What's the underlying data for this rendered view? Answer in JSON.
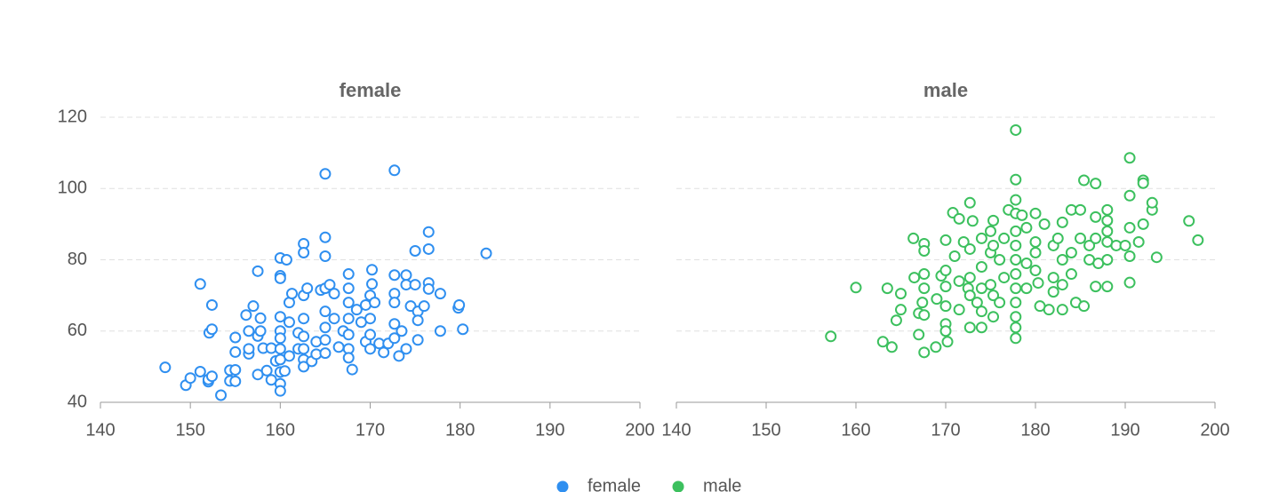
{
  "chart_data": [
    {
      "type": "scatter",
      "title": "female",
      "show_y_labels": true,
      "xlim": [
        140,
        200
      ],
      "ylim": [
        40,
        120
      ],
      "xticks": [
        140,
        150,
        160,
        170,
        180,
        190,
        200
      ],
      "yticks": [
        40,
        60,
        80,
        100,
        120
      ],
      "grid": true,
      "series": [
        {
          "name": "female",
          "color": "#2f8ff0",
          "x": [
            147.2,
            149.5,
            150,
            151.1,
            151.1,
            152,
            152,
            152.4,
            152.1,
            152.4,
            152.4,
            153.4,
            154.4,
            154.4,
            155,
            155,
            155,
            155,
            156.2,
            156.5,
            156.5,
            156.5,
            157,
            157.5,
            157.5,
            157.5,
            157.8,
            157.8,
            158.1,
            158.5,
            159,
            159,
            159.5,
            160,
            160,
            160,
            160,
            160,
            160,
            160,
            160,
            160,
            160,
            160,
            160.5,
            160.7,
            161,
            161,
            161,
            161.3,
            162,
            162,
            162.6,
            162.6,
            162.6,
            162.6,
            162.6,
            162.6,
            162.6,
            162.6,
            163,
            163.5,
            164,
            164,
            164.5,
            165,
            165,
            165,
            165,
            165,
            165,
            165,
            165,
            165.5,
            166,
            166,
            166.5,
            167,
            167.6,
            167.6,
            167.6,
            167.6,
            167.6,
            167.6,
            167.6,
            168,
            168.5,
            169,
            169.5,
            169.5,
            170,
            170,
            170,
            170,
            170.2,
            170.2,
            170.5,
            171,
            171.5,
            172,
            172.7,
            172.7,
            172.7,
            172.7,
            172.7,
            172.7,
            173.2,
            173.5,
            174,
            174,
            174,
            174.5,
            175,
            175,
            175.3,
            175.3,
            175.3,
            176,
            176.5,
            176.5,
            176.5,
            176.5,
            177.8,
            177.8,
            179.8,
            179.9,
            180.3,
            182.9
          ],
          "y": [
            49.8,
            44.8,
            46.8,
            48.6,
            73.2,
            45.8,
            46.4,
            47.3,
            59.5,
            60.5,
            67.3,
            42.0,
            49.0,
            46.0,
            58.2,
            49.1,
            45.9,
            54.1,
            64.5,
            53.6,
            55.0,
            60.0,
            67.0,
            47.8,
            76.8,
            58.6,
            60.0,
            63.6,
            55.2,
            48.9,
            55.2,
            46.3,
            51.6,
            80.5,
            75.5,
            74.8,
            64.0,
            60.0,
            58.0,
            55.0,
            52.0,
            48.5,
            45.2,
            43.2,
            48.8,
            80.0,
            68.0,
            62.5,
            53.0,
            70.5,
            55.0,
            59.5,
            84.5,
            82.0,
            70.0,
            63.5,
            58.5,
            55.0,
            52.0,
            50.0,
            72.0,
            51.5,
            57.0,
            53.5,
            71.5,
            104.1,
            86.3,
            81.0,
            72.0,
            65.5,
            61.0,
            57.5,
            53.8,
            73.0,
            63.5,
            70.5,
            55.5,
            60.0,
            76.0,
            72.0,
            68.0,
            63.5,
            59.0,
            55.0,
            52.5,
            49.2,
            66.0,
            62.5,
            57.0,
            67.3,
            70.0,
            63.5,
            59.0,
            55.0,
            77.2,
            73.2,
            68.0,
            56.5,
            54.0,
            56.5,
            105.1,
            75.7,
            70.5,
            68.0,
            62.0,
            58.0,
            53.0,
            60.0,
            75.7,
            73.0,
            55.0,
            67.0,
            82.5,
            73.0,
            65.5,
            63.0,
            57.5,
            67.0,
            87.8,
            83.0,
            73.5,
            71.8,
            70.5,
            60.0,
            66.5,
            67.3,
            60.5,
            81.8
          ]
        }
      ]
    },
    {
      "type": "scatter",
      "title": "male",
      "show_y_labels": false,
      "xlim": [
        140,
        200
      ],
      "ylim": [
        40,
        120
      ],
      "xticks": [
        140,
        150,
        160,
        170,
        180,
        190,
        200
      ],
      "yticks": [
        40,
        60,
        80,
        100,
        120
      ],
      "grid": true,
      "series": [
        {
          "name": "male",
          "color": "#3cc05e",
          "x": [
            157.2,
            160,
            163,
            163.5,
            164,
            164.5,
            165,
            165,
            166.4,
            166.5,
            167,
            167,
            167.4,
            167.6,
            167.6,
            167.6,
            167.6,
            167.6,
            167.6,
            168.9,
            169,
            169.5,
            170,
            170,
            170,
            170,
            170,
            170,
            170.2,
            170.8,
            171,
            171.5,
            171.5,
            171.5,
            172,
            172.5,
            172.7,
            172.7,
            172.7,
            172.7,
            172.7,
            173,
            173.5,
            174,
            174,
            174,
            174,
            174,
            175,
            175,
            175,
            175.3,
            175.3,
            175.3,
            175.3,
            176,
            176,
            176.5,
            176.5,
            177,
            177.8,
            177.8,
            177.8,
            177.8,
            177.8,
            177.8,
            177.8,
            177.8,
            177.8,
            177.8,
            177.8,
            177.8,
            177.8,
            178.5,
            179,
            179,
            179,
            180,
            180,
            180,
            180,
            180.3,
            180.5,
            181,
            181.5,
            182,
            182,
            182,
            182.5,
            183,
            183,
            183,
            183,
            184,
            184,
            184,
            184.5,
            185,
            185,
            185.4,
            185.4,
            186,
            186,
            186.7,
            186.7,
            186.7,
            186.7,
            187,
            188,
            188,
            188,
            188,
            188,
            188,
            189,
            190,
            190.5,
            190.5,
            190.5,
            190.5,
            190.5,
            191.5,
            192,
            192,
            192,
            193,
            193,
            193.5,
            197.1,
            198.1
          ],
          "y": [
            58.5,
            72.2,
            57.0,
            72.0,
            55.5,
            63.0,
            70.5,
            66.0,
            86.0,
            75.0,
            59.0,
            65.0,
            68.0,
            84.5,
            82.5,
            76.0,
            72.0,
            64.5,
            54.0,
            55.5,
            69.0,
            75.5,
            85.5,
            77.0,
            72.5,
            67.0,
            62.0,
            60.0,
            57.0,
            93.2,
            81.0,
            91.5,
            74.0,
            66.0,
            85.0,
            72.0,
            96.0,
            83.0,
            75.0,
            70.0,
            61.0,
            90.9,
            68.0,
            86.0,
            78.0,
            72.0,
            65.5,
            61.0,
            88.0,
            82.0,
            73.0,
            91.0,
            84.0,
            70.0,
            64.0,
            80.0,
            68.0,
            86.0,
            75.0,
            94.0,
            116.4,
            102.5,
            96.8,
            93.0,
            88.0,
            84.0,
            80.0,
            76.0,
            72.0,
            68.0,
            64.0,
            61.0,
            58.0,
            92.5,
            89.0,
            79.0,
            72.0,
            93.0,
            85.0,
            82.0,
            77.0,
            73.5,
            67.0,
            90.0,
            66.0,
            84.0,
            75.0,
            71.0,
            86.0,
            90.5,
            80.0,
            73.0,
            66.0,
            94.0,
            82.0,
            76.0,
            68.0,
            94.0,
            86.0,
            102.3,
            67.0,
            80.0,
            84.0,
            101.4,
            92.0,
            86.0,
            72.5,
            79.0,
            94.0,
            91.0,
            88.0,
            85.0,
            80.0,
            72.5,
            84.0,
            84.0,
            108.6,
            98.0,
            89.0,
            81.0,
            73.6,
            85.0,
            102.3,
            101.5,
            90.0,
            94.0,
            96.0,
            80.7,
            90.9,
            85.5
          ]
        }
      ]
    }
  ]
}
